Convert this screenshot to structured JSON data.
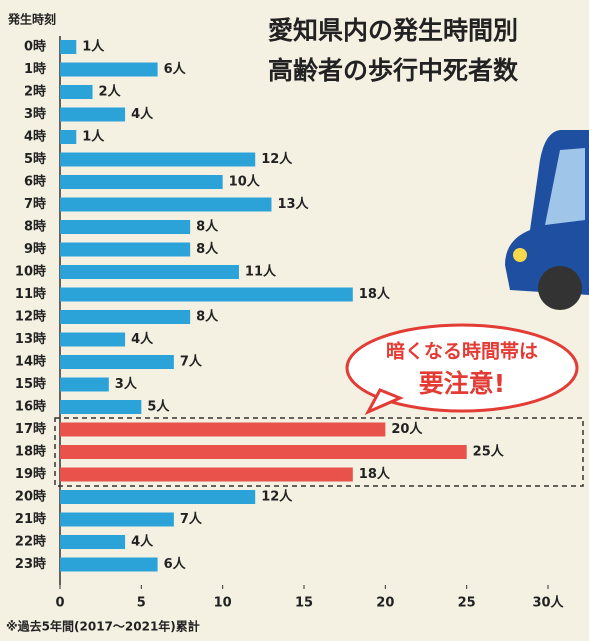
{
  "chart_data": {
    "type": "barh",
    "title": [
      "愛知県内の発生時間別",
      "高齢者の歩行中死者数"
    ],
    "y_label": "発生時刻",
    "categories": [
      "0時",
      "1時",
      "2時",
      "3時",
      "4時",
      "5時",
      "6時",
      "7時",
      "8時",
      "9時",
      "10時",
      "11時",
      "12時",
      "13時",
      "14時",
      "15時",
      "16時",
      "17時",
      "18時",
      "19時",
      "20時",
      "21時",
      "22時",
      "23時"
    ],
    "values": [
      1,
      6,
      2,
      4,
      1,
      12,
      10,
      13,
      8,
      8,
      11,
      18,
      8,
      4,
      7,
      3,
      5,
      20,
      25,
      18,
      12,
      7,
      4,
      6
    ],
    "value_labels": [
      "1人",
      "6人",
      "2人",
      "4人",
      "1人",
      "12人",
      "10人",
      "13人",
      "8人",
      "8人",
      "11人",
      "18人",
      "8人",
      "4人",
      "7人",
      "3人",
      "5人",
      "20人",
      "25人",
      "18人",
      "12人",
      "7人",
      "4人",
      "6人"
    ],
    "colors": [
      "#2ba3d9",
      "#2ba3d9",
      "#2ba3d9",
      "#2ba3d9",
      "#2ba3d9",
      "#2ba3d9",
      "#2ba3d9",
      "#2ba3d9",
      "#2ba3d9",
      "#2ba3d9",
      "#2ba3d9",
      "#2ba3d9",
      "#2ba3d9",
      "#2ba3d9",
      "#2ba3d9",
      "#2ba3d9",
      "#2ba3d9",
      "#e9524a",
      "#e9524a",
      "#e9524a",
      "#2ba3d9",
      "#2ba3d9",
      "#2ba3d9",
      "#2ba3d9"
    ],
    "xlim": [
      0,
      30
    ],
    "xticks": [
      0,
      5,
      10,
      15,
      20,
      25,
      {
        "value": 30,
        "label": "30人"
      }
    ],
    "callout": [
      "暗くなる時間帯は",
      "要注意!"
    ],
    "footnote": "※過去5年間(2017〜2021年)累計"
  }
}
